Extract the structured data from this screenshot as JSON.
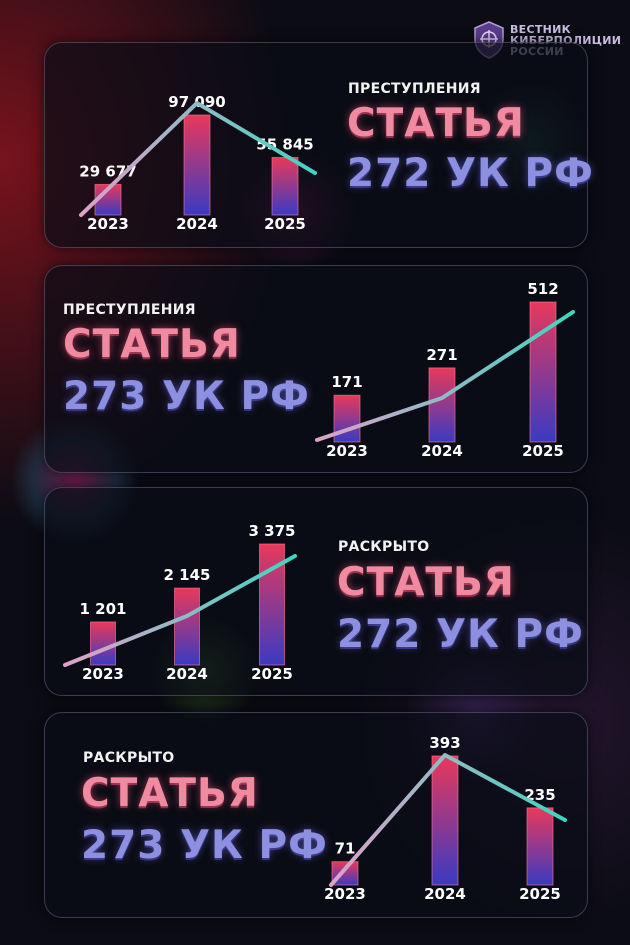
{
  "brand": {
    "lines": [
      "ВЕСТНИК",
      "КИБЕРПОЛИЦИИ",
      "РОССИИ"
    ]
  },
  "colors": {
    "bar_top": "#e8395a",
    "bar_bottom": "#3a3ac2",
    "line_start": "#e0a0c8",
    "line_end": "#3dd6c0",
    "title_line1": "#f08aa0",
    "title_line2": "#8d8fe0"
  },
  "panels": [
    {
      "kicker": "ПРЕСТУПЛЕНИЯ",
      "title_line1": "СТАТЬЯ",
      "title_line2": "272 УК РФ"
    },
    {
      "kicker": "ПРЕСТУПЛЕНИЯ",
      "title_line1": "СТАТЬЯ",
      "title_line2": "273 УК РФ"
    },
    {
      "kicker": "РАСКРЫТО",
      "title_line1": "СТАТЬЯ",
      "title_line2": "272 УК РФ"
    },
    {
      "kicker": "РАСКРЫТО",
      "title_line1": "СТАТЬЯ",
      "title_line2": "273 УК РФ"
    }
  ],
  "chart_data": [
    {
      "type": "bar",
      "categories": [
        "2023",
        "2024",
        "2025"
      ],
      "values": [
        29677,
        97090,
        55845
      ],
      "value_labels": [
        "29 677",
        "97 090",
        "55 845"
      ],
      "trend_line": true
    },
    {
      "type": "bar",
      "categories": [
        "2023",
        "2024",
        "2025"
      ],
      "values": [
        171,
        271,
        512
      ],
      "value_labels": [
        "171",
        "271",
        "512"
      ],
      "trend_line": true
    },
    {
      "type": "bar",
      "categories": [
        "2023",
        "2024",
        "2025"
      ],
      "values": [
        1201,
        2145,
        3375
      ],
      "value_labels": [
        "1 201",
        "2 145",
        "3 375"
      ],
      "trend_line": true
    },
    {
      "type": "bar",
      "categories": [
        "2023",
        "2024",
        "2025"
      ],
      "values": [
        71,
        393,
        235
      ],
      "value_labels": [
        "71",
        "393",
        "235"
      ],
      "trend_line": true
    }
  ]
}
